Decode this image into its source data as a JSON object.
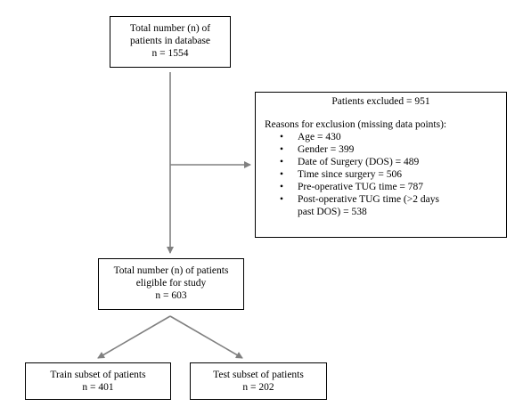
{
  "flowchart": {
    "database_box": {
      "lines": [
        "Total number (n) of",
        "patients in database",
        "n = 1554"
      ]
    },
    "excluded_box": {
      "title": "Patients excluded = 951",
      "reasons_heading": "Reasons for exclusion (missing data points):",
      "reasons": [
        "Age = 430",
        "Gender = 399",
        "Date of Surgery (DOS) = 489",
        "Time since surgery = 506",
        "Pre-operative TUG time = 787",
        "Post-operative TUG time (>2 days past DOS) = 538"
      ]
    },
    "eligible_box": {
      "lines": [
        "Total number (n) of patients",
        "eligible for study",
        "n = 603"
      ]
    },
    "train_box": {
      "lines": [
        "Train subset of patients",
        "n = 401"
      ]
    },
    "test_box": {
      "lines": [
        "Test subset of patients",
        "n = 202"
      ]
    },
    "colors": {
      "arrow": "#808080",
      "border": "#000000"
    }
  }
}
